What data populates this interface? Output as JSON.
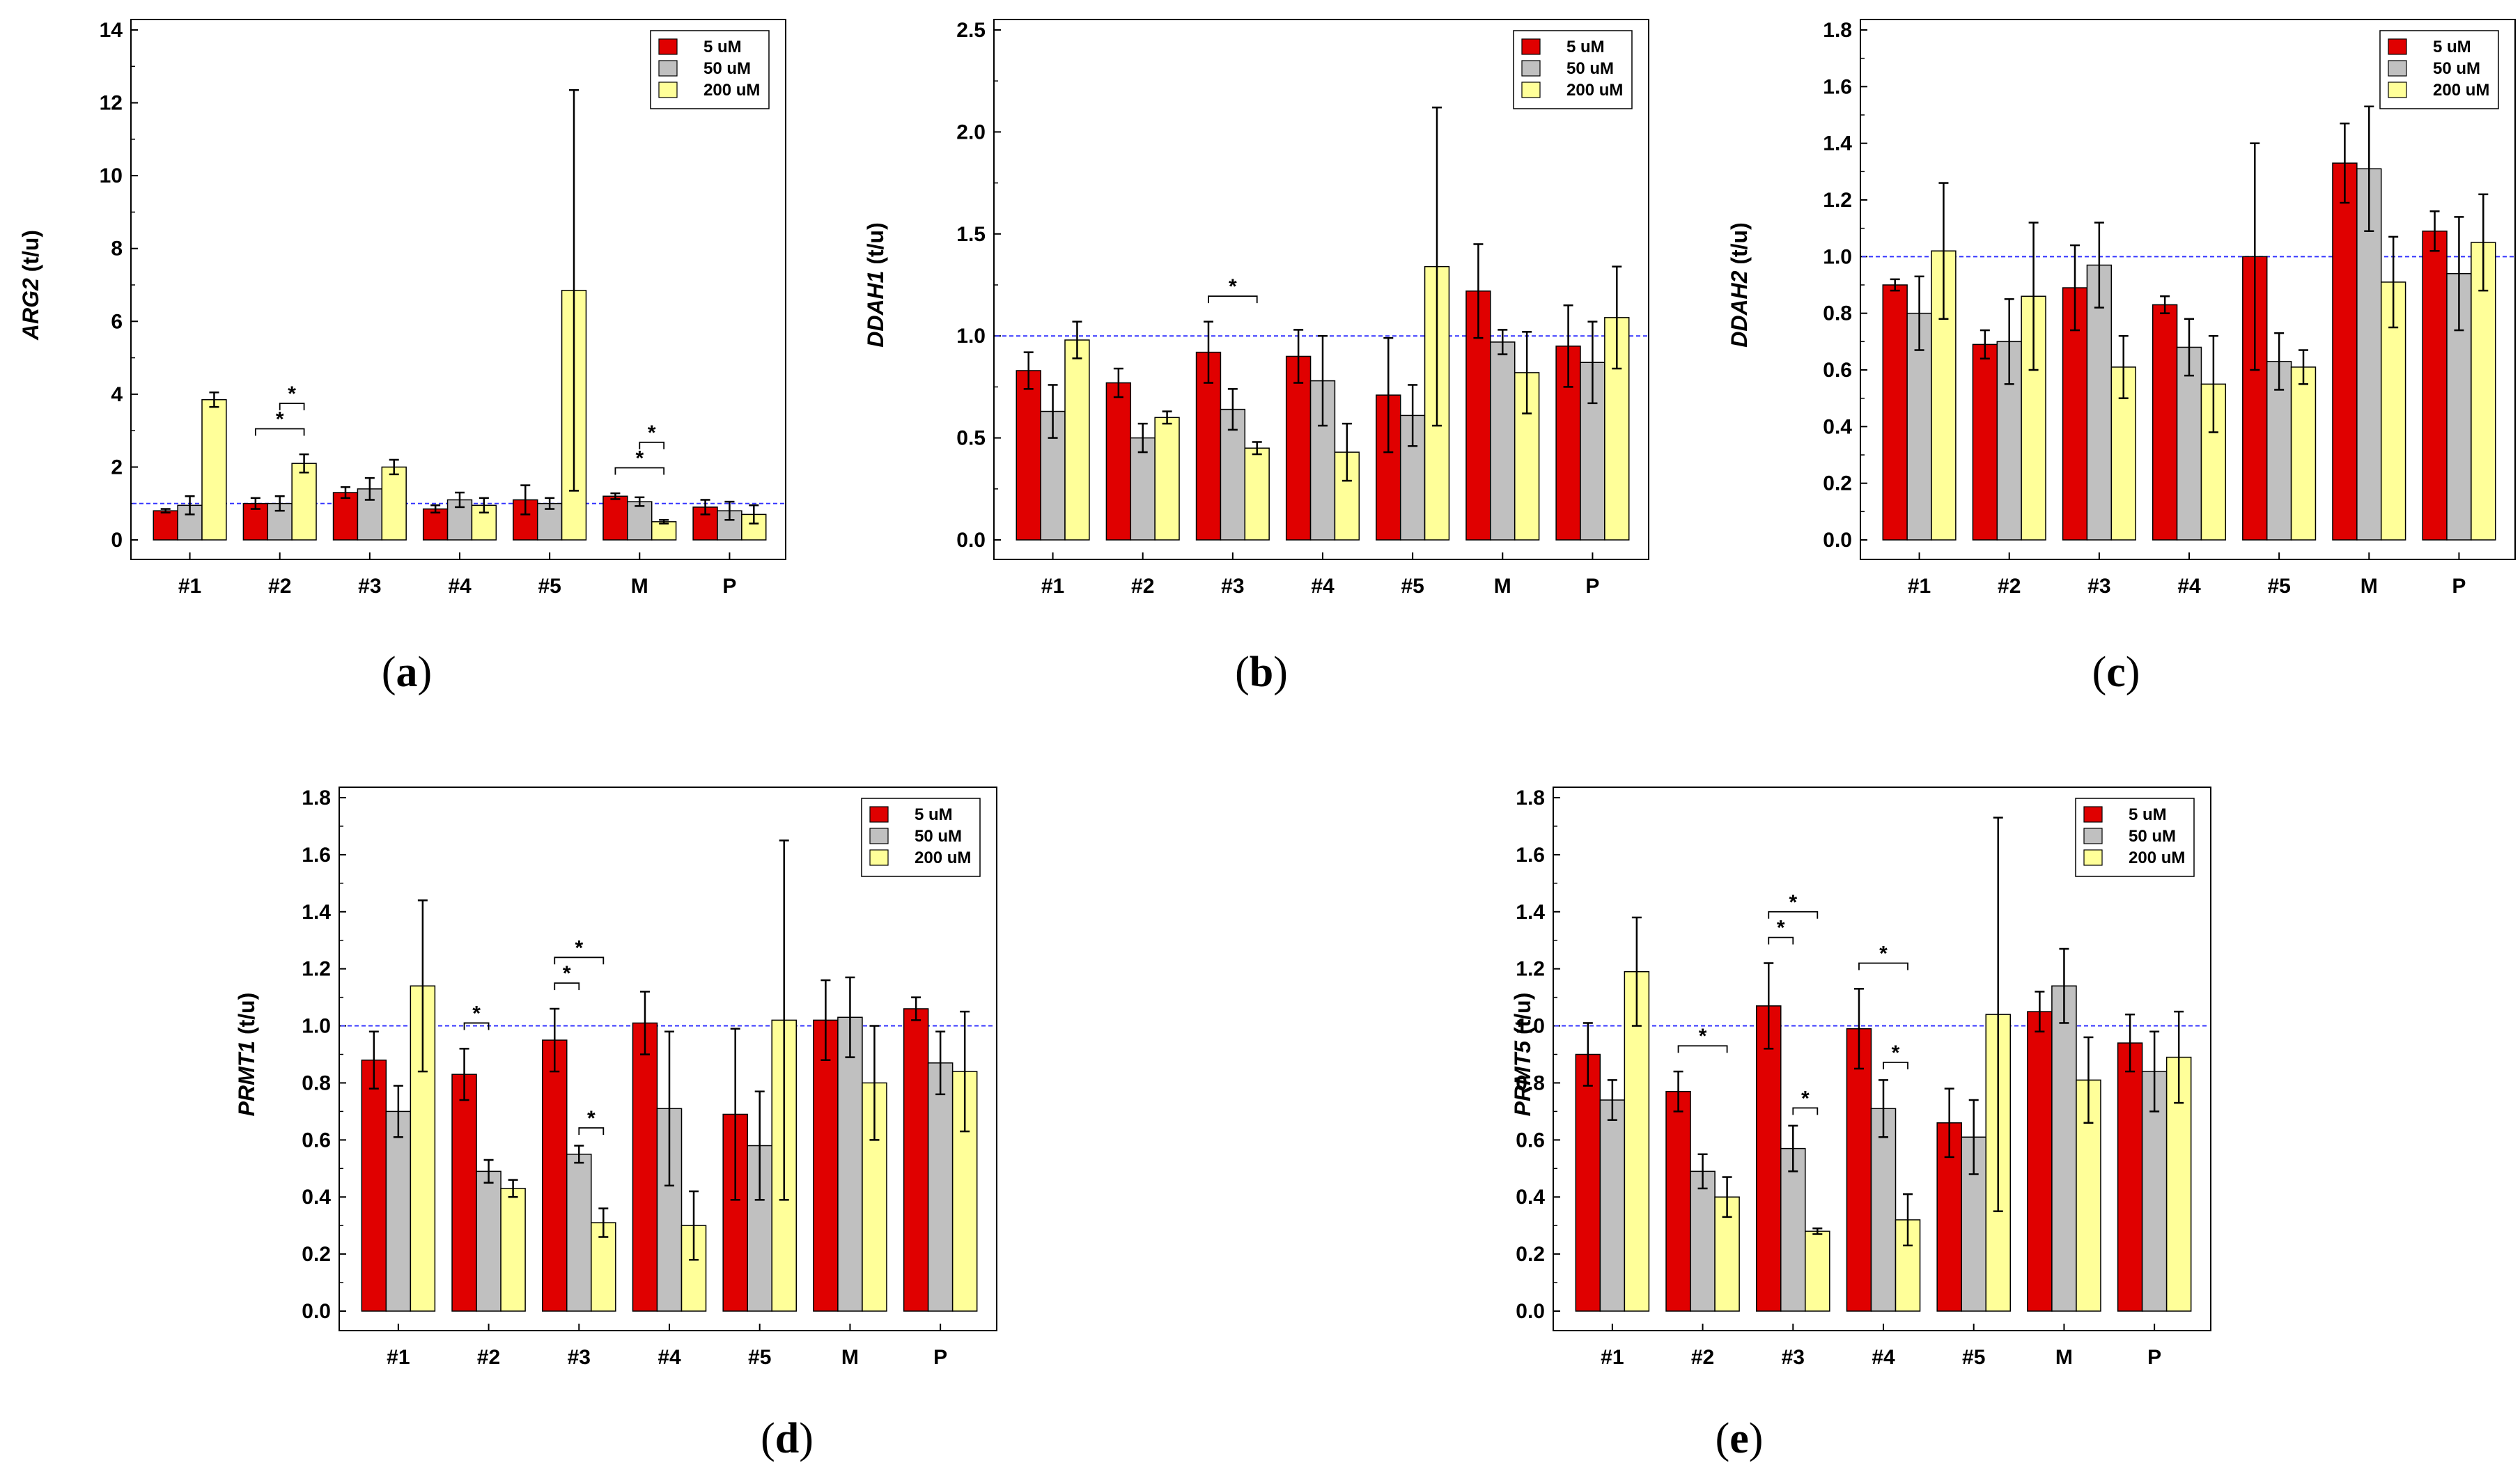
{
  "colors": {
    "5 uM": "#e00000",
    "50 uM": "#c0c0c0",
    "200 uM": "#ffff99",
    "reference": "#3333ff"
  },
  "chart_data": [
    {
      "type": "bar",
      "panel": "a",
      "ylabel_gene": "ARG2",
      "ylabel_unit": "(t/u)",
      "ylim": [
        0,
        14
      ],
      "yticks": [
        0,
        2,
        4,
        6,
        8,
        10,
        12,
        14
      ],
      "reference_line": 1.0,
      "categories": [
        "#1",
        "#2",
        "#3",
        "#4",
        "#5",
        "M",
        "P"
      ],
      "legend": [
        "5 uM",
        "50 uM",
        "200 uM"
      ],
      "series": [
        {
          "name": "5 uM",
          "values": [
            0.8,
            1.0,
            1.3,
            0.85,
            1.1,
            1.2,
            0.9
          ],
          "errors": [
            0.05,
            0.15,
            0.15,
            0.1,
            0.4,
            0.08,
            0.2
          ]
        },
        {
          "name": "50 uM",
          "values": [
            0.95,
            1.0,
            1.4,
            1.1,
            1.0,
            1.05,
            0.8
          ],
          "errors": [
            0.25,
            0.2,
            0.3,
            0.2,
            0.15,
            0.12,
            0.25
          ]
        },
        {
          "name": "200 uM",
          "values": [
            3.85,
            2.1,
            2.0,
            0.95,
            6.85,
            0.5,
            0.7
          ],
          "errors": [
            0.2,
            0.25,
            0.2,
            0.2,
            5.5,
            0.05,
            0.25
          ]
        }
      ],
      "significance": [
        {
          "category": "#2",
          "from": 0,
          "to": 2,
          "level": 0,
          "label": "*"
        },
        {
          "category": "#2",
          "from": 1,
          "to": 2,
          "level": 1,
          "label": "*"
        },
        {
          "category": "M",
          "from": 0,
          "to": 2,
          "level": 0,
          "label": "*"
        },
        {
          "category": "M",
          "from": 1,
          "to": 2,
          "level": 1,
          "label": "*"
        }
      ]
    },
    {
      "type": "bar",
      "panel": "b",
      "ylabel_gene": "DDAH1",
      "ylabel_unit": "(t/u)",
      "ylim": [
        0,
        2.5
      ],
      "yticks": [
        0.0,
        0.5,
        1.0,
        1.5,
        2.0,
        2.5
      ],
      "reference_line": 1.0,
      "categories": [
        "#1",
        "#2",
        "#3",
        "#4",
        "#5",
        "M",
        "P"
      ],
      "legend": [
        "5 uM",
        "50 uM",
        "200 uM"
      ],
      "series": [
        {
          "name": "5 uM",
          "values": [
            0.83,
            0.77,
            0.92,
            0.9,
            0.71,
            1.22,
            0.95
          ],
          "errors": [
            0.09,
            0.07,
            0.15,
            0.13,
            0.28,
            0.23,
            0.2
          ]
        },
        {
          "name": "50 uM",
          "values": [
            0.63,
            0.5,
            0.64,
            0.78,
            0.61,
            0.97,
            0.87
          ],
          "errors": [
            0.13,
            0.07,
            0.1,
            0.22,
            0.15,
            0.06,
            0.2
          ]
        },
        {
          "name": "200 uM",
          "values": [
            0.98,
            0.6,
            0.45,
            0.43,
            1.34,
            0.82,
            1.09
          ],
          "errors": [
            0.09,
            0.03,
            0.03,
            0.14,
            0.78,
            0.2,
            0.25
          ]
        }
      ],
      "significance": [
        {
          "category": "#3",
          "from": 0,
          "to": 2,
          "level": 0,
          "label": "*"
        }
      ]
    },
    {
      "type": "bar",
      "panel": "c",
      "ylabel_gene": "DDAH2",
      "ylabel_unit": "(t/u)",
      "ylim": [
        0,
        1.8
      ],
      "yticks": [
        0.0,
        0.2,
        0.4,
        0.6,
        0.8,
        1.0,
        1.2,
        1.4,
        1.6,
        1.8
      ],
      "reference_line": 1.0,
      "categories": [
        "#1",
        "#2",
        "#3",
        "#4",
        "#5",
        "M",
        "P"
      ],
      "legend": [
        "5 uM",
        "50 uM",
        "200 uM"
      ],
      "series": [
        {
          "name": "5 uM",
          "values": [
            0.9,
            0.69,
            0.89,
            0.83,
            1.0,
            1.33,
            1.09
          ],
          "errors": [
            0.02,
            0.05,
            0.15,
            0.03,
            0.4,
            0.14,
            0.07
          ]
        },
        {
          "name": "50 uM",
          "values": [
            0.8,
            0.7,
            0.97,
            0.68,
            0.63,
            1.31,
            0.94
          ],
          "errors": [
            0.13,
            0.15,
            0.15,
            0.1,
            0.1,
            0.22,
            0.2
          ]
        },
        {
          "name": "200 uM",
          "values": [
            1.02,
            0.86,
            0.61,
            0.55,
            0.61,
            0.91,
            1.05
          ],
          "errors": [
            0.24,
            0.26,
            0.11,
            0.17,
            0.06,
            0.16,
            0.17
          ]
        }
      ],
      "significance": []
    },
    {
      "type": "bar",
      "panel": "d",
      "ylabel_gene": "PRMT1",
      "ylabel_unit": "(t/u)",
      "ylim": [
        0,
        1.8
      ],
      "yticks": [
        0.0,
        0.2,
        0.4,
        0.6,
        0.8,
        1.0,
        1.2,
        1.4,
        1.6,
        1.8
      ],
      "reference_line": 1.0,
      "categories": [
        "#1",
        "#2",
        "#3",
        "#4",
        "#5",
        "M",
        "P"
      ],
      "legend": [
        "5 uM",
        "50 uM",
        "200 uM"
      ],
      "series": [
        {
          "name": "5 uM",
          "values": [
            0.88,
            0.83,
            0.95,
            1.01,
            0.69,
            1.02,
            1.06
          ],
          "errors": [
            0.1,
            0.09,
            0.11,
            0.11,
            0.3,
            0.14,
            0.04
          ]
        },
        {
          "name": "50 uM",
          "values": [
            0.7,
            0.49,
            0.55,
            0.71,
            0.58,
            1.03,
            0.87
          ],
          "errors": [
            0.09,
            0.04,
            0.03,
            0.27,
            0.19,
            0.14,
            0.11
          ]
        },
        {
          "name": "200 uM",
          "values": [
            1.14,
            0.43,
            0.31,
            0.3,
            1.02,
            0.8,
            0.84
          ],
          "errors": [
            0.3,
            0.03,
            0.05,
            0.12,
            0.63,
            0.2,
            0.21
          ]
        }
      ],
      "significance": [
        {
          "category": "#2",
          "from": 0,
          "to": 1,
          "level": 0,
          "label": "*"
        },
        {
          "category": "#3",
          "from": 0,
          "to": 1,
          "level": 0,
          "label": "*"
        },
        {
          "category": "#3",
          "from": 0,
          "to": 2,
          "level": 1,
          "label": "*"
        },
        {
          "category": "#3",
          "from": 1,
          "to": 2,
          "level": -2,
          "label": "*"
        }
      ]
    },
    {
      "type": "bar",
      "panel": "e",
      "ylabel_gene": "PRMT5",
      "ylabel_unit": "(t/u)",
      "ylim": [
        0,
        1.8
      ],
      "yticks": [
        0.0,
        0.2,
        0.4,
        0.6,
        0.8,
        1.0,
        1.2,
        1.4,
        1.6,
        1.8
      ],
      "reference_line": 1.0,
      "categories": [
        "#1",
        "#2",
        "#3",
        "#4",
        "#5",
        "M",
        "P"
      ],
      "legend": [
        "5 uM",
        "50 uM",
        "200 uM"
      ],
      "series": [
        {
          "name": "5 uM",
          "values": [
            0.9,
            0.77,
            1.07,
            0.99,
            0.66,
            1.05,
            0.94
          ],
          "errors": [
            0.11,
            0.07,
            0.15,
            0.14,
            0.12,
            0.07,
            0.1
          ]
        },
        {
          "name": "50 uM",
          "values": [
            0.74,
            0.49,
            0.57,
            0.71,
            0.61,
            1.14,
            0.84
          ],
          "errors": [
            0.07,
            0.06,
            0.08,
            0.1,
            0.13,
            0.13,
            0.14
          ]
        },
        {
          "name": "200 uM",
          "values": [
            1.19,
            0.4,
            0.28,
            0.32,
            1.04,
            0.81,
            0.89
          ],
          "errors": [
            0.19,
            0.07,
            0.01,
            0.09,
            0.69,
            0.15,
            0.16
          ]
        }
      ],
      "significance": [
        {
          "category": "#2",
          "from": 0,
          "to": 2,
          "level": 0,
          "label": "*"
        },
        {
          "category": "#3",
          "from": 0,
          "to": 1,
          "level": 0,
          "label": "*"
        },
        {
          "category": "#3",
          "from": 0,
          "to": 2,
          "level": 1,
          "label": "*"
        },
        {
          "category": "#3",
          "from": 1,
          "to": 2,
          "level": -2,
          "label": "*"
        },
        {
          "category": "#4",
          "from": 0,
          "to": 2,
          "level": 0,
          "label": "*"
        },
        {
          "category": "#4",
          "from": 1,
          "to": 2,
          "level": -2,
          "label": "*"
        }
      ]
    }
  ],
  "panel_labels": [
    {
      "open": "(",
      "letter": "a",
      "close": ")"
    },
    {
      "open": "(",
      "letter": "b",
      "close": ")"
    },
    {
      "open": "(",
      "letter": "c",
      "close": ")"
    },
    {
      "open": "(",
      "letter": "d",
      "close": ")"
    },
    {
      "open": "(",
      "letter": "e",
      "close": ")"
    }
  ]
}
